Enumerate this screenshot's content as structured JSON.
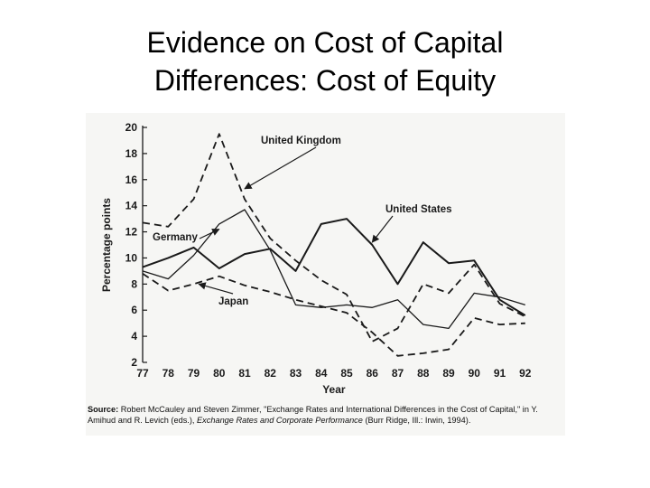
{
  "slide": {
    "title_line1": "Evidence on Cost of Capital",
    "title_line2": "Differences: Cost of Equity"
  },
  "chart_data": {
    "type": "line",
    "title": "",
    "xlabel": "Year",
    "ylabel": "Percentage points",
    "x": [
      77,
      78,
      79,
      80,
      81,
      82,
      83,
      84,
      85,
      86,
      87,
      88,
      89,
      90,
      91,
      92
    ],
    "x_tick_labels": [
      "77",
      "78",
      "79",
      "80",
      "81",
      "82",
      "83",
      "84",
      "85",
      "86",
      "87",
      "88",
      "89",
      "90",
      "91",
      "92"
    ],
    "xlim": [
      77,
      93
    ],
    "ylim": [
      2,
      20
    ],
    "y_ticks": [
      2,
      4,
      6,
      8,
      10,
      12,
      14,
      16,
      18,
      20
    ],
    "y_tick_labels": [
      "2",
      "4",
      "6",
      "8",
      "10",
      "12",
      "14",
      "16",
      "18",
      "20"
    ],
    "grid": false,
    "legend": "none",
    "series": [
      {
        "name": "United Kingdom",
        "style": "dashed",
        "points": [
          [
            77,
            12.7
          ],
          [
            78,
            12.4
          ],
          [
            79,
            14.5
          ],
          [
            80,
            19.5
          ],
          [
            81,
            14.5
          ],
          [
            82,
            11.5
          ],
          [
            83,
            9.8
          ],
          [
            84,
            8.3
          ],
          [
            85,
            7.2
          ],
          [
            86,
            3.6
          ],
          [
            87,
            4.6
          ],
          [
            88,
            8.0
          ],
          [
            89,
            7.3
          ],
          [
            90,
            9.5
          ],
          [
            91,
            6.5
          ],
          [
            92,
            5.5
          ]
        ]
      },
      {
        "name": "United States",
        "style": "solid",
        "points": [
          [
            77,
            9.3
          ],
          [
            78,
            10.0
          ],
          [
            79,
            10.8
          ],
          [
            80,
            9.2
          ],
          [
            81,
            10.3
          ],
          [
            82,
            10.7
          ],
          [
            83,
            9.0
          ],
          [
            84,
            12.6
          ],
          [
            85,
            13.0
          ],
          [
            86,
            11.0
          ],
          [
            87,
            8.0
          ],
          [
            88,
            11.2
          ],
          [
            89,
            9.6
          ],
          [
            90,
            9.8
          ],
          [
            91,
            6.8
          ],
          [
            92,
            5.6
          ]
        ]
      },
      {
        "name": "Germany",
        "style": "solid-thin",
        "points": [
          [
            77,
            9.0
          ],
          [
            78,
            8.4
          ],
          [
            79,
            10.2
          ],
          [
            80,
            12.6
          ],
          [
            81,
            13.7
          ],
          [
            82,
            10.6
          ],
          [
            83,
            6.4
          ],
          [
            84,
            6.2
          ],
          [
            85,
            6.4
          ],
          [
            86,
            6.2
          ],
          [
            87,
            6.8
          ],
          [
            88,
            4.9
          ],
          [
            89,
            4.6
          ],
          [
            90,
            7.3
          ],
          [
            91,
            7.0
          ],
          [
            92,
            6.4
          ]
        ]
      },
      {
        "name": "Japan",
        "style": "dashed",
        "points": [
          [
            77,
            8.8
          ],
          [
            78,
            7.5
          ],
          [
            79,
            8.0
          ],
          [
            80,
            8.6
          ],
          [
            81,
            7.9
          ],
          [
            82,
            7.4
          ],
          [
            83,
            6.8
          ],
          [
            84,
            6.3
          ],
          [
            85,
            5.8
          ],
          [
            86,
            4.3
          ],
          [
            87,
            2.5
          ],
          [
            88,
            2.7
          ],
          [
            89,
            3.0
          ],
          [
            90,
            5.4
          ],
          [
            91,
            4.9
          ],
          [
            92,
            5.0
          ]
        ]
      }
    ],
    "annotations": [
      {
        "text": "United Kingdom",
        "points_to": [
          81,
          15.3
        ]
      },
      {
        "text": "United States",
        "points_to": [
          86,
          11.2
        ]
      },
      {
        "text": "Germany",
        "points_to": [
          80,
          12.2
        ]
      },
      {
        "text": "Japan",
        "points_to": [
          79.2,
          8.0
        ]
      }
    ]
  },
  "source": {
    "label": "Source:",
    "part1": "Robert McCauley and Steven Zimmer, \"Exchange Rates and International Differences in the Cost of Capital,\" in Y. Amihud and R. Levich (eds.), ",
    "book": "Exchange Rates and Corporate Performance",
    "part2": " (Burr Ridge, Ill.: Irwin, 1994)."
  }
}
